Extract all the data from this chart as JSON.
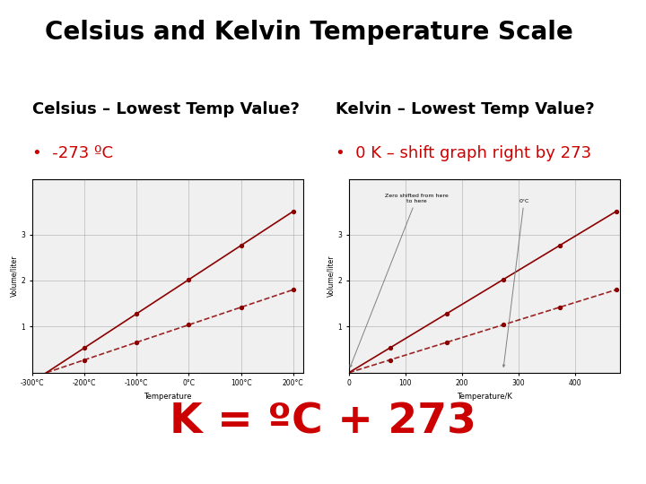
{
  "title": "Celsius and Kelvin Temperature Scale",
  "title_fontsize": 20,
  "title_fontweight": "bold",
  "bg_color": "#ffffff",
  "left_heading": "Celsius – Lowest Temp Value?",
  "right_heading": "Kelvin – Lowest Temp Value?",
  "left_bullet": "-273 ºC",
  "right_bullet": "0 K – shift graph right by 273",
  "formula": "K = ºC + 273",
  "heading_fontsize": 13,
  "heading_fontweight": "bold",
  "bullet_fontsize": 13,
  "bullet_color": "#cc0000",
  "formula_fontsize": 34,
  "formula_fontweight": "bold",
  "formula_color": "#cc0000",
  "text_color": "#000000",
  "graph_bg": "#f0f0f0",
  "line_color": "#8B0000",
  "dash_color": "#8B0000",
  "grid_color": "#aaaaaa"
}
